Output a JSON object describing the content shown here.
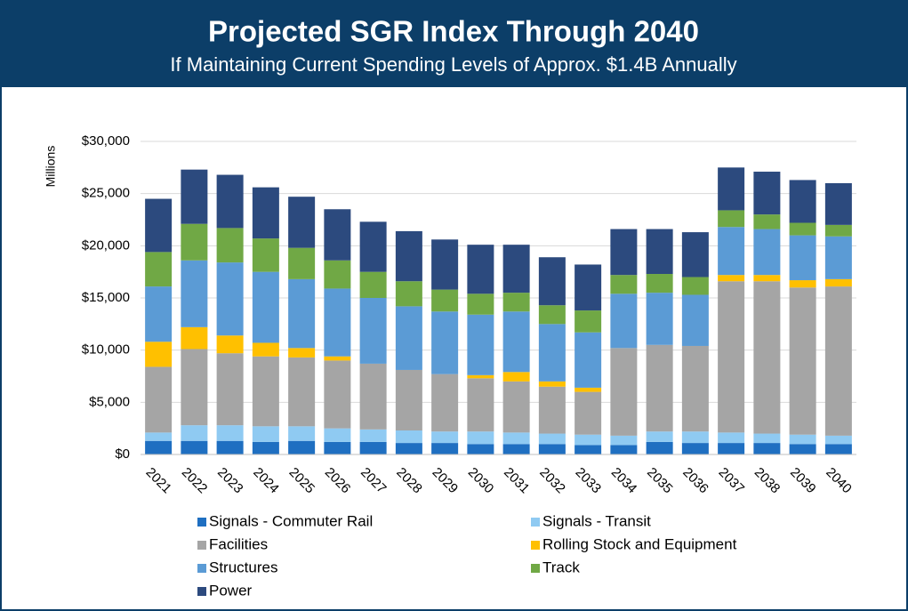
{
  "chart_data": {
    "type": "stacked_bar",
    "title": "Projected SGR Index Through 2040",
    "subtitle": "If Maintaining Current Spending Levels of Approx. $1.4B Annually",
    "y_label": "Millions",
    "categories": [
      "2021",
      "2022",
      "2023",
      "2024",
      "2025",
      "2026",
      "2027",
      "2028",
      "2029",
      "2030",
      "2031",
      "2032",
      "2033",
      "2034",
      "2035",
      "2036",
      "2037",
      "2038",
      "2039",
      "2040"
    ],
    "series": [
      {
        "name": "Signals - Commuter Rail",
        "color": "#1f6fc1",
        "values": [
          1300,
          1300,
          1300,
          1200,
          1300,
          1200,
          1200,
          1100,
          1100,
          1000,
          1000,
          1000,
          900,
          900,
          1200,
          1100,
          1100,
          1100,
          1000,
          1000
        ]
      },
      {
        "name": "Signals - Transit",
        "color": "#8fcaf2",
        "values": [
          800,
          1500,
          1500,
          1500,
          1400,
          1300,
          1200,
          1200,
          1100,
          1200,
          1100,
          1000,
          1000,
          900,
          1000,
          1100,
          1000,
          900,
          900,
          800
        ]
      },
      {
        "name": "Facilities",
        "color": "#a5a5a5",
        "values": [
          6300,
          7300,
          6900,
          6700,
          6600,
          6500,
          6300,
          5800,
          5500,
          5100,
          4900,
          4500,
          4100,
          8400,
          8300,
          8200,
          14500,
          14600,
          14100,
          14300
        ]
      },
      {
        "name": "Rolling Stock and Equipment",
        "color": "#ffc000",
        "values": [
          2400,
          2100,
          1700,
          1300,
          900,
          400,
          0,
          0,
          0,
          300,
          900,
          500,
          400,
          0,
          0,
          0,
          600,
          600,
          700,
          700
        ]
      },
      {
        "name": "Structures",
        "color": "#5b9bd5",
        "values": [
          5300,
          6400,
          7000,
          6800,
          6600,
          6500,
          6300,
          6100,
          6000,
          5800,
          5800,
          5500,
          5300,
          5200,
          5000,
          4900,
          4600,
          4400,
          4300,
          4100
        ]
      },
      {
        "name": "Track",
        "color": "#70a845",
        "values": [
          3300,
          3500,
          3300,
          3200,
          3000,
          2700,
          2500,
          2400,
          2100,
          2000,
          1800,
          1800,
          2100,
          1800,
          1800,
          1700,
          1600,
          1400,
          1200,
          1100
        ]
      },
      {
        "name": "Power",
        "color": "#2c4a7e",
        "values": [
          5100,
          5200,
          5100,
          4900,
          4900,
          4900,
          4800,
          4800,
          4800,
          4700,
          4600,
          4600,
          4400,
          4400,
          4300,
          4300,
          4100,
          4100,
          4100,
          4000
        ]
      }
    ],
    "ylim": [
      0,
      30000
    ],
    "yticks": [
      {
        "value": 0,
        "label": "$0"
      },
      {
        "value": 5000,
        "label": "$5,000"
      },
      {
        "value": 10000,
        "label": "$10,000"
      },
      {
        "value": 15000,
        "label": "$15,000"
      },
      {
        "value": 20000,
        "label": "$20,000"
      },
      {
        "value": 25000,
        "label": "$25,000"
      },
      {
        "value": 30000,
        "label": "$30,000"
      }
    ],
    "grid": true
  }
}
